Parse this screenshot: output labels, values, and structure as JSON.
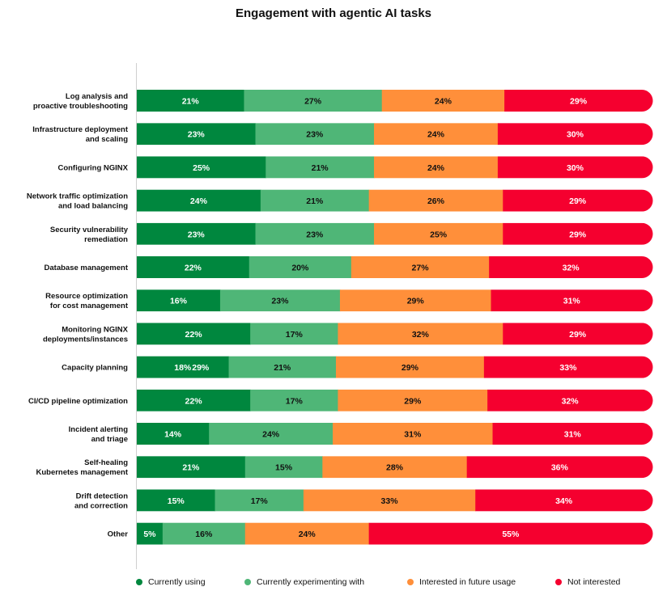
{
  "chart_data": {
    "type": "bar",
    "orientation": "horizontal",
    "stacked": true,
    "title": "Engagement with agentic AI tasks",
    "value_suffix": "%",
    "categories": [
      "Log analysis and proactive troubleshooting",
      "Infrastructure deployment and scaling",
      "Configuring NGINX",
      "Network traffic optimization and load balancing",
      "Security vulnerability remediation",
      "Database management",
      "Resource optimization for cost management",
      "Monitoring NGINX deployments/instances",
      "Capacity planning",
      "CI/CD pipeline optimization",
      "Incident alerting and triage",
      "Self-healing Kubernetes management",
      "Drift detection and correction",
      "Other"
    ],
    "category_lines": [
      [
        "Log analysis and",
        "proactive troubleshooting"
      ],
      [
        "Infrastructure deployment",
        "and scaling"
      ],
      [
        "Configuring NGINX"
      ],
      [
        "Network traffic optimization",
        "and load balancing"
      ],
      [
        "Security vulnerability",
        "remediation"
      ],
      [
        "Database management"
      ],
      [
        "Resource optimization",
        "for cost management"
      ],
      [
        "Monitoring NGINX",
        "deployments/instances"
      ],
      [
        "Capacity planning"
      ],
      [
        "CI/CD pipeline optimization"
      ],
      [
        "Incident alerting",
        "and triage"
      ],
      [
        "Self-healing",
        "Kubernetes management"
      ],
      [
        "Drift detection",
        "and correction"
      ],
      [
        "Other"
      ]
    ],
    "series": [
      {
        "name": "Currently using",
        "color": "#00873e",
        "label_color": "#ffffff",
        "values": [
          21,
          23,
          25,
          24,
          23,
          22,
          16,
          22,
          18,
          22,
          14,
          21,
          15,
          5
        ]
      },
      {
        "name": "Currently experimenting with",
        "color": "#4fb677",
        "label_color": "#111111",
        "values": [
          27,
          23,
          21,
          21,
          23,
          20,
          23,
          17,
          21,
          17,
          24,
          15,
          17,
          16
        ]
      },
      {
        "name": "Interested in future usage",
        "color": "#ff8f3a",
        "label_color": "#111111",
        "values": [
          24,
          24,
          24,
          26,
          25,
          27,
          29,
          32,
          29,
          29,
          31,
          28,
          33,
          24
        ]
      },
      {
        "name": "Not interested",
        "color": "#f5002f",
        "label_color": "#ffffff",
        "values": [
          29,
          30,
          30,
          29,
          29,
          32,
          31,
          29,
          33,
          32,
          31,
          36,
          34,
          55
        ]
      }
    ],
    "extra_labels": [
      {
        "category": "Capacity planning",
        "text": "29%"
      }
    ],
    "legend_position": "bottom",
    "grid": false
  }
}
